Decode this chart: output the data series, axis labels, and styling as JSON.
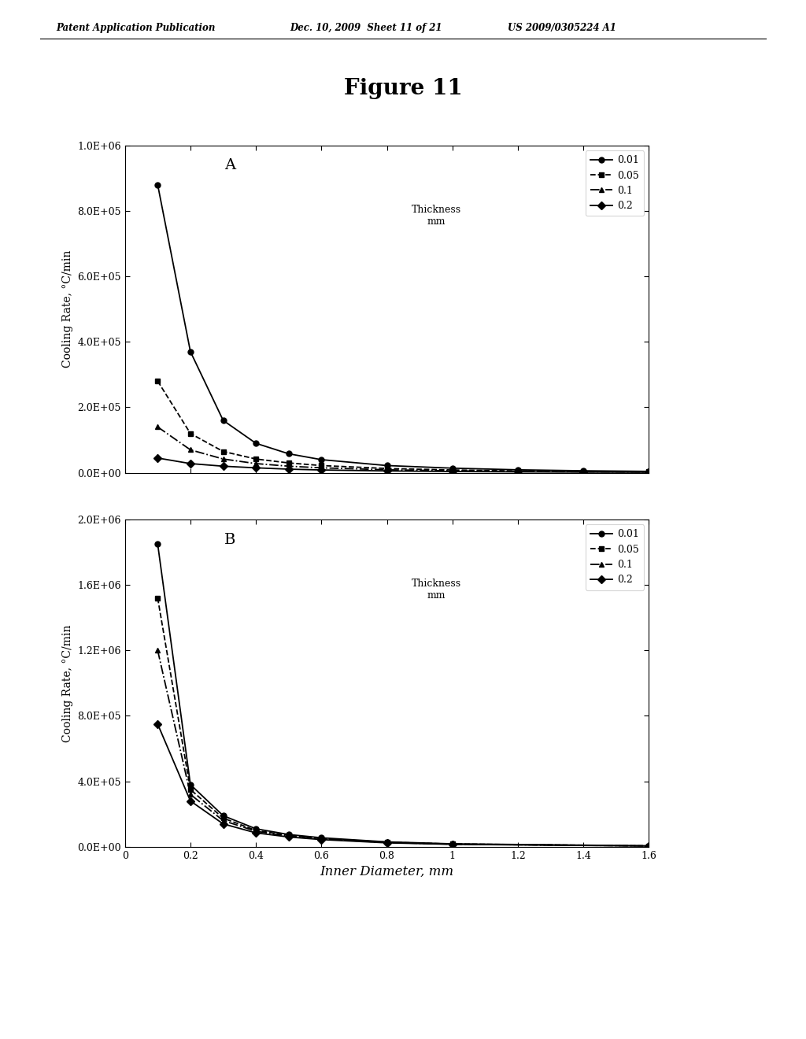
{
  "header_left": "Patent Application Publication",
  "header_mid": "Dec. 10, 2009  Sheet 11 of 21",
  "header_right": "US 2009/0305224 A1",
  "figure_title": "Figure 11",
  "xlabel": "Inner Diameter, mm",
  "ylabel": "Cooling Rate, °C/min",
  "legend_labels": [
    "0.01",
    "0.05",
    "0.1",
    "0.2"
  ],
  "panel_A_label": "A",
  "panel_B_label": "B",
  "A_xlim": [
    0.0,
    1.6
  ],
  "A_ylim": [
    0.0,
    1000000.0
  ],
  "B_xlim": [
    0.0,
    1.6
  ],
  "B_ylim": [
    0.0,
    2000000.0
  ],
  "A_yticks": [
    0.0,
    200000.0,
    400000.0,
    600000.0,
    800000.0,
    1000000.0
  ],
  "B_yticks": [
    0.0,
    400000.0,
    800000.0,
    1200000.0,
    1600000.0,
    2000000.0
  ],
  "xticks": [
    0.0,
    0.2,
    0.4,
    0.6,
    0.8,
    1.0,
    1.2,
    1.4,
    1.6
  ],
  "xticklabels": [
    "0",
    "0.2",
    "0.4",
    "0.6",
    "0.8",
    "1",
    "1.2",
    "1.4",
    "1.6"
  ],
  "A_data": {
    "x": [
      0.1,
      0.2,
      0.3,
      0.4,
      0.5,
      0.6,
      0.8,
      1.0,
      1.2,
      1.4,
      1.6
    ],
    "thickness_0_01": [
      880000.0,
      370000.0,
      160000.0,
      90000.0,
      58000.0,
      40000.0,
      22000.0,
      14000.0,
      9000,
      6000,
      4200
    ],
    "thickness_0_05": [
      280000.0,
      120000.0,
      65000.0,
      42000.0,
      30000.0,
      22000.0,
      13000.0,
      8500,
      5500,
      4000,
      3000
    ],
    "thickness_0_1": [
      140000.0,
      70000.0,
      42000.0,
      28000.0,
      20000.0,
      15000.0,
      9000,
      6000,
      4000,
      3000,
      2200
    ],
    "thickness_0_2": [
      45000.0,
      28000.0,
      20000.0,
      15000.0,
      11000.0,
      8500,
      5500,
      3800,
      2700,
      2000,
      1600
    ]
  },
  "B_data": {
    "x": [
      0.1,
      0.2,
      0.3,
      0.4,
      0.5,
      0.6,
      0.8,
      1.0,
      1.6
    ],
    "thickness_0_01": [
      1850000.0,
      380000.0,
      190000.0,
      110000.0,
      75000.0,
      55000.0,
      30000.0,
      18000.0,
      6000
    ],
    "thickness_0_05": [
      1520000.0,
      350000.0,
      175000.0,
      100000.0,
      70000.0,
      50000.0,
      28000.0,
      17000.0,
      5500
    ],
    "thickness_0_1": [
      1200000.0,
      320000.0,
      160000.0,
      95000.0,
      65000.0,
      48000.0,
      26000.0,
      16000.0,
      5000
    ],
    "thickness_0_2": [
      750000.0,
      280000.0,
      140000.0,
      85000.0,
      60000.0,
      44000.0,
      24000.0,
      15000.0,
      4500
    ]
  },
  "line_color": "#000000",
  "background_color": "#ffffff",
  "marker_circle": "o",
  "marker_square": "s",
  "marker_triangle": "^",
  "marker_diamond": "D",
  "linestyles": [
    "-",
    "--",
    "-.",
    "-"
  ],
  "marker_size": 5,
  "linewidth": 1.3
}
